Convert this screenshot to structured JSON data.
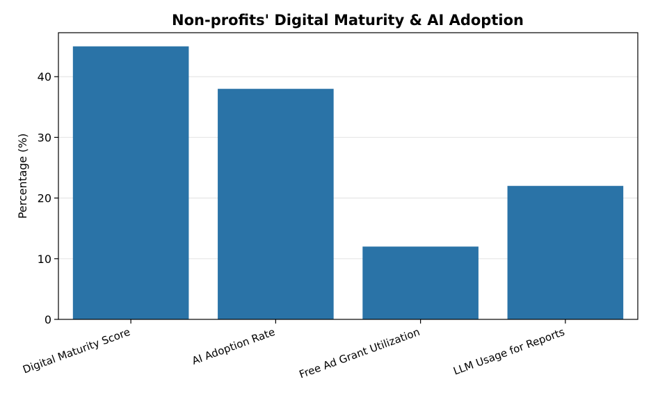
{
  "chart_data": {
    "type": "bar",
    "title": "Non-profits' Digital Maturity & AI Adoption",
    "xlabel": "",
    "ylabel": "Percentage (%)",
    "categories": [
      "Digital Maturity Score",
      "AI Adoption Rate",
      "Free Ad Grant Utilization",
      "LLM Usage for Reports"
    ],
    "values": [
      45,
      38,
      12,
      22
    ],
    "ylim": [
      0,
      47.25
    ],
    "yticks": [
      0,
      10,
      20,
      30,
      40
    ],
    "grid": "horizontal",
    "bar_color": "#2a73a7",
    "grid_color": "#e6e6e6"
  }
}
